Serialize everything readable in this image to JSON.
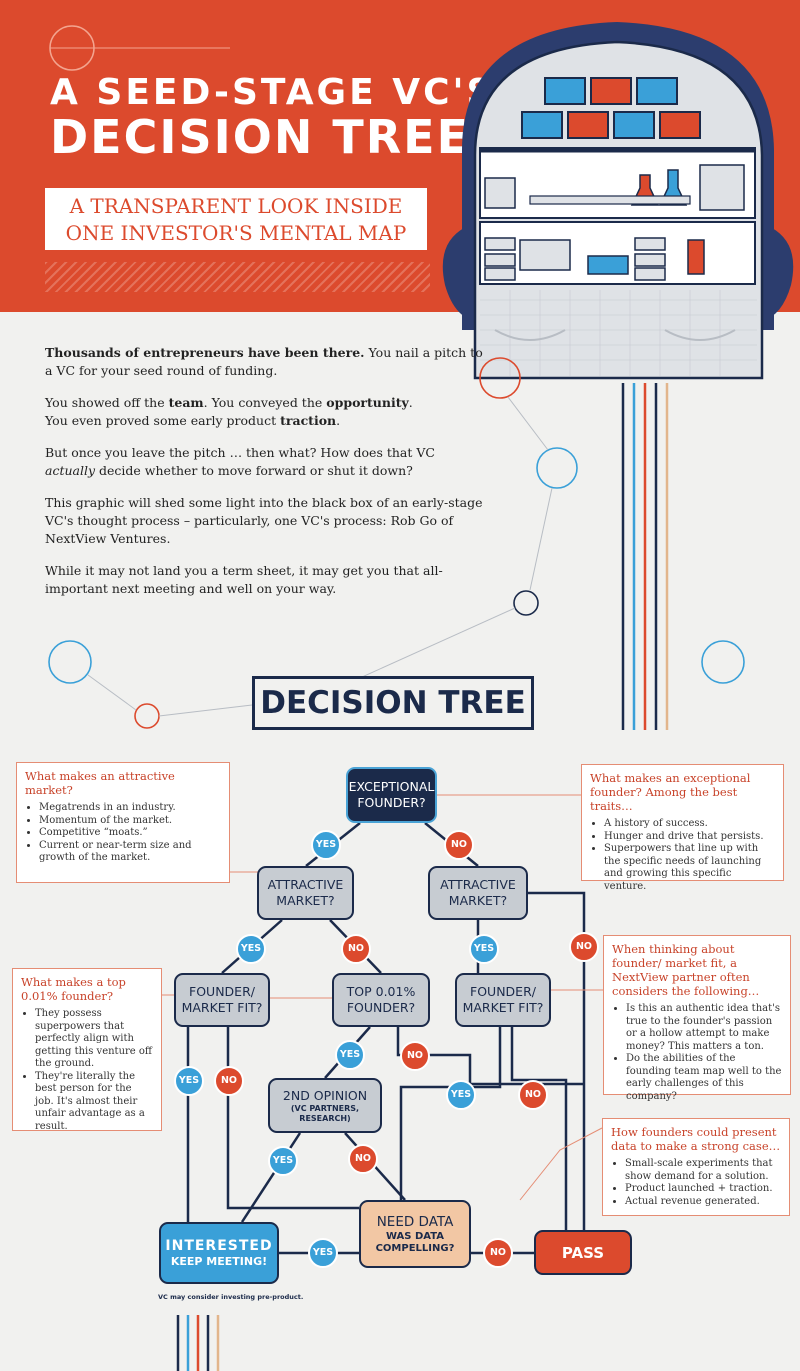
{
  "header": {
    "title_line1": "A SEED-STAGE VC'S",
    "title_line2": "DECISION TREE",
    "subtitle_line1": "A TRANSPARENT LOOK INSIDE",
    "subtitle_line2": "ONE INVESTOR'S MENTAL MAP"
  },
  "intro": {
    "p1_bold": "Thousands of entrepreneurs have been there.",
    "p1_rest": " You nail a pitch to a VC for your seed round of funding.",
    "p2_a": "You showed off the ",
    "p2_team": "team",
    "p2_b": ". You conveyed the ",
    "p2_opportunity": "opportunity",
    "p2_c": ".",
    "p2_d": "You even proved some early product ",
    "p2_traction": "traction",
    "p2_e": ".",
    "p3_a": "But once you leave the pitch … then what? How does that VC ",
    "p3_actually": "actually",
    "p3_b": " decide whether to move forward or shut it down?",
    "p4": "This graphic will shed some light into the black box of an early-stage VC's thought process – particularly, one VC's process: Rob Go of NextView Ventures.",
    "p5": "While it may not land you a term sheet, it may get you that all-important next meeting and well on your way."
  },
  "tree": {
    "heading": "DECISION TREE",
    "nodes": {
      "founder": [
        "EXCEPTIONAL",
        "FOUNDER?"
      ],
      "market_yes": [
        "ATTRACTIVE",
        "MARKET?"
      ],
      "market_no": [
        "ATTRACTIVE",
        "MARKET?"
      ],
      "fit_left": [
        "FOUNDER/",
        "MARKET FIT?"
      ],
      "top": [
        "TOP 0.01%",
        "FOUNDER?"
      ],
      "fit_right": [
        "FOUNDER/",
        "MARKET FIT?"
      ],
      "opinion_main": "2ND OPINION",
      "opinion_sub": "(VC PARTNERS, RESEARCH)",
      "data_main": "NEED DATA",
      "data_sub": [
        "WAS DATA",
        "COMPELLING?"
      ],
      "interested_main": "INTERESTED",
      "interested_sub": "KEEP MEETING!",
      "pass": "PASS"
    },
    "yes": "YES",
    "no": "NO",
    "note": "VC may consider investing pre-product."
  },
  "boxes": {
    "market": {
      "heading": "What makes an attractive market?",
      "items": [
        "Megatrends in an industry.",
        "Momentum of the market.",
        "Competitive “moats.”",
        "Current or near-term size and growth of the market."
      ]
    },
    "exceptional": {
      "heading": "What makes an exceptional founder? Among the best traits…",
      "items": [
        "A history of success.",
        "Hunger and drive that persists.",
        "Superpowers that line up with the specific needs of launching and growing this specific venture."
      ]
    },
    "top": {
      "heading": "What makes a top 0.01% founder?",
      "items": [
        "They possess superpowers that perfectly align with getting this venture off the ground.",
        "They're literally the best person for the job. It's almost their unfair advantage as a result."
      ]
    },
    "fit": {
      "heading": "When thinking about founder/ market fit, a NextView partner often considers the following…",
      "items": [
        "Is this an authentic idea that's true to the founder's passion or a hollow attempt to make money? This matters a ton.",
        "Do the abilities of the founding team map well to the early challenges of this company?"
      ]
    },
    "data": {
      "heading": "How founders could present data to make a strong case…",
      "items": [
        "Small-scale experiments that show demand for a solution.",
        "Product launched + traction.",
        "Actual revenue generated."
      ]
    }
  },
  "colors": {
    "orange": "#dc4a2d",
    "navy": "#1b2a4a",
    "blue": "#3aa0d8",
    "grey_node": "#c7ccd2",
    "peach_node": "#f2c7a4"
  }
}
